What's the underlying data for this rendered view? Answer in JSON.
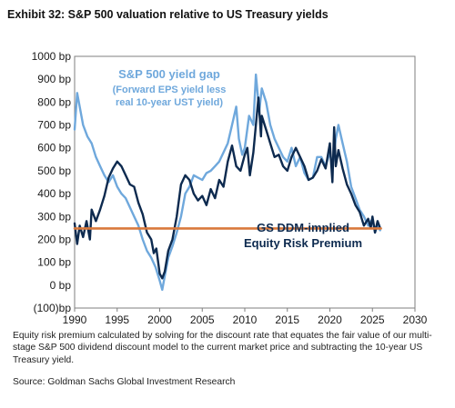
{
  "header": {
    "title": "Exhibit 32: S&P 500 valuation relative to US Treasury yields"
  },
  "footer": {
    "caption": "Equity risk premium calculated by solving for the discount rate that equates the fair value of our multi-stage S&P 500 dividend discount model to the current market price and subtracting the 10-year US Treasury yield.",
    "source": "Source: Goldman Sachs Global Investment Research"
  },
  "colors": {
    "yield_gap": "#6fa8dc",
    "erp": "#0d2a4f",
    "constant": "#d9793c",
    "frame": "#7f7f7f",
    "annotation_light": "#6fa8dc",
    "annotation_dark": "#0d2a4f"
  },
  "chart_data": {
    "type": "line",
    "title": "",
    "xlabel": "",
    "ylabel": "",
    "xlim": [
      1990,
      2030
    ],
    "ylim": [
      -100,
      1000
    ],
    "x_ticks": [
      "1990",
      "1995",
      "2000",
      "2005",
      "2010",
      "2015",
      "2020",
      "2025",
      "2030"
    ],
    "y_ticks": [
      "(100)bp",
      "0 bp",
      "100 bp",
      "200 bp",
      "300 bp",
      "400 bp",
      "500 bp",
      "600 bp",
      "700 bp",
      "800 bp",
      "900 bp",
      "1000 bp"
    ],
    "grid": false,
    "annotations": {
      "yield_gap_title": "S&P 500 yield gap",
      "yield_gap_sub1": "(Forward EPS yield less",
      "yield_gap_sub2": "real 10-year UST yield)",
      "erp_line1": "GS DDM-implied",
      "erp_line2": "Equity Risk Premium"
    },
    "series": [
      {
        "name": "S&P 500 yield gap",
        "points": [
          [
            1990,
            680
          ],
          [
            1990.3,
            840
          ],
          [
            1990.7,
            760
          ],
          [
            1991,
            700
          ],
          [
            1991.5,
            650
          ],
          [
            1992,
            620
          ],
          [
            1992.5,
            560
          ],
          [
            1993,
            520
          ],
          [
            1993.5,
            480
          ],
          [
            1994,
            450
          ],
          [
            1994.5,
            480
          ],
          [
            1995,
            430
          ],
          [
            1995.5,
            400
          ],
          [
            1996,
            380
          ],
          [
            1996.5,
            340
          ],
          [
            1997,
            300
          ],
          [
            1997.5,
            260
          ],
          [
            1998,
            200
          ],
          [
            1998.5,
            150
          ],
          [
            1999,
            120
          ],
          [
            1999.5,
            80
          ],
          [
            2000,
            20
          ],
          [
            2000.3,
            -20
          ],
          [
            2000.6,
            40
          ],
          [
            2001,
            120
          ],
          [
            2001.5,
            170
          ],
          [
            2002,
            230
          ],
          [
            2002.5,
            300
          ],
          [
            2003,
            400
          ],
          [
            2003.5,
            430
          ],
          [
            2004,
            480
          ],
          [
            2004.5,
            470
          ],
          [
            2005,
            460
          ],
          [
            2005.5,
            490
          ],
          [
            2006,
            500
          ],
          [
            2006.5,
            520
          ],
          [
            2007,
            540
          ],
          [
            2007.5,
            580
          ],
          [
            2008,
            620
          ],
          [
            2008.5,
            700
          ],
          [
            2009,
            780
          ],
          [
            2009.3,
            640
          ],
          [
            2009.7,
            570
          ],
          [
            2010,
            600
          ],
          [
            2010.5,
            740
          ],
          [
            2011,
            700
          ],
          [
            2011.3,
            920
          ],
          [
            2011.7,
            760
          ],
          [
            2012,
            860
          ],
          [
            2012.5,
            800
          ],
          [
            2013,
            700
          ],
          [
            2013.5,
            640
          ],
          [
            2014,
            600
          ],
          [
            2014.5,
            560
          ],
          [
            2015,
            540
          ],
          [
            2015.5,
            600
          ],
          [
            2016,
            520
          ],
          [
            2016.5,
            560
          ],
          [
            2017,
            490
          ],
          [
            2017.5,
            460
          ],
          [
            2018,
            470
          ],
          [
            2018.5,
            560
          ],
          [
            2019,
            560
          ],
          [
            2019.5,
            520
          ],
          [
            2020,
            580
          ],
          [
            2020.3,
            520
          ],
          [
            2020.7,
            640
          ],
          [
            2021,
            700
          ],
          [
            2021.5,
            620
          ],
          [
            2022,
            540
          ],
          [
            2022.5,
            430
          ],
          [
            2023,
            380
          ],
          [
            2023.5,
            330
          ],
          [
            2024,
            300
          ],
          [
            2024.5,
            260
          ],
          [
            2025,
            290
          ],
          [
            2025.3,
            230
          ],
          [
            2025.6,
            260
          ],
          [
            2025.9,
            240
          ]
        ]
      },
      {
        "name": "GS DDM-implied Equity Risk Premium",
        "points": [
          [
            1990,
            270
          ],
          [
            1990.3,
            180
          ],
          [
            1990.6,
            260
          ],
          [
            1991,
            210
          ],
          [
            1991.4,
            280
          ],
          [
            1991.8,
            200
          ],
          [
            1992,
            330
          ],
          [
            1992.5,
            280
          ],
          [
            1993,
            330
          ],
          [
            1993.5,
            390
          ],
          [
            1994,
            470
          ],
          [
            1994.5,
            510
          ],
          [
            1995,
            540
          ],
          [
            1995.5,
            520
          ],
          [
            1996,
            480
          ],
          [
            1996.5,
            440
          ],
          [
            1997,
            430
          ],
          [
            1997.5,
            360
          ],
          [
            1998,
            310
          ],
          [
            1998.5,
            230
          ],
          [
            1999,
            200
          ],
          [
            1999.3,
            140
          ],
          [
            1999.6,
            160
          ],
          [
            2000,
            50
          ],
          [
            2000.3,
            30
          ],
          [
            2000.6,
            60
          ],
          [
            2001,
            150
          ],
          [
            2001.5,
            200
          ],
          [
            2002,
            300
          ],
          [
            2002.5,
            440
          ],
          [
            2003,
            480
          ],
          [
            2003.5,
            460
          ],
          [
            2004,
            400
          ],
          [
            2004.5,
            370
          ],
          [
            2005,
            390
          ],
          [
            2005.5,
            350
          ],
          [
            2006,
            420
          ],
          [
            2006.5,
            380
          ],
          [
            2007,
            460
          ],
          [
            2007.5,
            430
          ],
          [
            2008,
            540
          ],
          [
            2008.5,
            610
          ],
          [
            2009,
            520
          ],
          [
            2009.5,
            500
          ],
          [
            2010,
            570
          ],
          [
            2010.3,
            600
          ],
          [
            2010.6,
            480
          ],
          [
            2011,
            580
          ],
          [
            2011.3,
            700
          ],
          [
            2011.6,
            820
          ],
          [
            2011.9,
            650
          ],
          [
            2012,
            740
          ],
          [
            2012.5,
            680
          ],
          [
            2013,
            620
          ],
          [
            2013.5,
            560
          ],
          [
            2014,
            570
          ],
          [
            2014.5,
            520
          ],
          [
            2015,
            500
          ],
          [
            2015.5,
            560
          ],
          [
            2016,
            600
          ],
          [
            2016.5,
            560
          ],
          [
            2017,
            520
          ],
          [
            2017.5,
            460
          ],
          [
            2018,
            470
          ],
          [
            2018.5,
            500
          ],
          [
            2019,
            550
          ],
          [
            2019.5,
            510
          ],
          [
            2020,
            620
          ],
          [
            2020.3,
            450
          ],
          [
            2020.5,
            690
          ],
          [
            2020.7,
            520
          ],
          [
            2021,
            590
          ],
          [
            2021.5,
            510
          ],
          [
            2022,
            440
          ],
          [
            2022.5,
            400
          ],
          [
            2023,
            350
          ],
          [
            2023.5,
            320
          ],
          [
            2024,
            260
          ],
          [
            2024.5,
            290
          ],
          [
            2024.8,
            250
          ],
          [
            2025,
            300
          ],
          [
            2025.3,
            230
          ],
          [
            2025.6,
            280
          ],
          [
            2025.9,
            250
          ]
        ]
      },
      {
        "name": "",
        "points": [
          [
            1990,
            248
          ],
          [
            2026,
            248
          ]
        ]
      }
    ]
  }
}
